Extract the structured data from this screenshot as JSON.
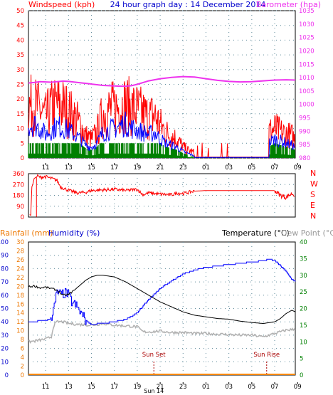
{
  "header": {
    "left_title": "Windspeed (kph)",
    "center_title": "24 hour graph day : 14 December 2014",
    "right_title": "Barometer (hpa)"
  },
  "colors": {
    "wind": "#ff0000",
    "wind_avg": "#0000ff",
    "wind_green": "#008000",
    "barometer": "#ee33ee",
    "rain": "#ff8800",
    "humidity": "#0000ff",
    "temperature": "#000000",
    "dewpoint": "#b0b0b0",
    "sun_marker": "#aa0000",
    "axis_red": "#ff0000",
    "axis_blue": "#0000cc",
    "axis_green": "#008000",
    "axis_orange": "#ee7700",
    "axis_grey": "#999999"
  },
  "time_ticks": [
    "11",
    "13",
    "15",
    "17",
    "19",
    "21",
    "23",
    "01",
    "03",
    "05",
    "07",
    "09"
  ],
  "chart_data": [
    {
      "id": "wind_baro",
      "type": "line",
      "ylabel": "Windspeed (kph)",
      "ylabel_right": "Barometer (hpa)",
      "ylim": [
        0,
        50
      ],
      "yticks": [
        "0",
        "5",
        "10",
        "15",
        "20",
        "25",
        "30",
        "35",
        "40",
        "45",
        "50"
      ],
      "ylim_right": [
        980,
        1035
      ],
      "yticks_right": [
        "980",
        "985",
        "990",
        "995",
        "1000",
        "1005",
        "1010",
        "1015",
        "1020",
        "1025",
        "1030",
        "1035"
      ],
      "grid": true,
      "series": [
        {
          "name": "Barometer",
          "axis": "right",
          "x": [
            9.5,
            10,
            10.5,
            11,
            11.5,
            12,
            12.5,
            13,
            14,
            15,
            16,
            17,
            17.5,
            18,
            18.5,
            19,
            20,
            21,
            22,
            23,
            24,
            25,
            26,
            27,
            28,
            29,
            30,
            31,
            32,
            32.8
          ],
          "y": [
            1008,
            1008.2,
            1008.5,
            1008.4,
            1008.3,
            1008.5,
            1008.7,
            1008.6,
            1008.1,
            1007.6,
            1007.1,
            1006.9,
            1006.8,
            1006.8,
            1007,
            1007.5,
            1008.8,
            1009.6,
            1010.1,
            1010.4,
            1010.2,
            1009.6,
            1009,
            1008.6,
            1008.4,
            1008.5,
            1008.8,
            1009.1,
            1009.2,
            1009.1
          ]
        },
        {
          "name": "Wind gust",
          "envelope_hours": [
            9.5,
            10,
            10.5,
            11,
            11.5,
            12,
            12.5,
            13,
            13.5,
            14,
            14.5,
            15,
            15.5,
            16,
            16.5,
            17,
            17.5,
            18,
            18.5,
            19,
            19.5,
            20,
            20.5,
            21,
            21.5,
            22,
            22.5,
            23,
            23.5,
            24,
            30.5,
            31,
            31.5,
            32,
            32.5,
            32.8
          ],
          "envelope_max": [
            28,
            29,
            26,
            22,
            27,
            29,
            28,
            25,
            22,
            18,
            12,
            10,
            14,
            24,
            26,
            27,
            28,
            29,
            27,
            26,
            24,
            22,
            23,
            18,
            14,
            12,
            10,
            6,
            4,
            3,
            14,
            16,
            14,
            13,
            12,
            10
          ]
        },
        {
          "name": "Wind average",
          "envelope_hours": [
            9.5,
            10,
            10.5,
            11,
            11.5,
            12,
            12.5,
            13,
            13.5,
            14,
            14.5,
            15,
            15.5,
            16,
            16.5,
            17,
            17.5,
            18,
            18.5,
            19,
            19.5,
            20,
            20.5,
            21,
            21.5,
            22,
            22.5,
            23,
            23.5,
            24,
            30.5,
            31,
            31.5,
            32,
            32.5,
            32.8
          ],
          "envelope_max": [
            15,
            16,
            14,
            11,
            13,
            15,
            14,
            13,
            11,
            9,
            6,
            5,
            7,
            12,
            13,
            14,
            15,
            16,
            14,
            13,
            12,
            11,
            12,
            9,
            7,
            6,
            5,
            3,
            2,
            1,
            7,
            9,
            8,
            7,
            6,
            5
          ]
        }
      ]
    },
    {
      "id": "wind_direction",
      "type": "line",
      "ylim": [
        0,
        360
      ],
      "yticks": [
        "0",
        "90",
        "180",
        "270",
        "360"
      ],
      "compass_labels": [
        "N",
        "W",
        "S",
        "E",
        "N"
      ],
      "grid": true,
      "series": [
        {
          "name": "Wind direction",
          "x": [
            9.6,
            9.7,
            9.8,
            9.9,
            10.0,
            10.3,
            10.5,
            11,
            11.5,
            12,
            12.3,
            12.8,
            13.2,
            13.8,
            14.5,
            15,
            16,
            17,
            18,
            19,
            19.5,
            20,
            21,
            22,
            22.5,
            23,
            23.5,
            24,
            25,
            26,
            27,
            28,
            29,
            30,
            31,
            31.5,
            32,
            32.5,
            32.8
          ],
          "y": [
            20,
            15,
            250,
            280,
            320,
            340,
            330,
            335,
            320,
            305,
            250,
            230,
            215,
            200,
            205,
            220,
            225,
            230,
            220,
            230,
            185,
            200,
            190,
            185,
            200,
            195,
            205,
            215,
            220,
            220,
            220,
            220,
            220,
            220,
            220,
            180,
            165,
            195,
            180
          ]
        }
      ]
    },
    {
      "id": "temp_hum_rain",
      "type": "line",
      "ylabel_rain": "Rainfall (mm)",
      "ylabel_humidity": "Humidity (%)",
      "ylabel_temp": "Temperature (°C)",
      "ylabel_dew": "Dew Point (°C)",
      "ylim_humidity": [
        0,
        100
      ],
      "yticks_humidity": [
        "0",
        "10",
        "20",
        "30",
        "40",
        "50",
        "60",
        "70",
        "80",
        "90",
        "100"
      ],
      "ylim_rain": [
        0,
        30
      ],
      "yticks_rain": [
        "0",
        "2",
        "4",
        "6",
        "8",
        "10",
        "12",
        "14",
        "16",
        "18",
        "20",
        "22",
        "24",
        "26",
        "28",
        "30"
      ],
      "ylim_temp": [
        0,
        40
      ],
      "yticks_temp": [
        "0",
        "5",
        "10",
        "15",
        "20",
        "25",
        "30",
        "35",
        "40"
      ],
      "grid": true,
      "annotations": [
        {
          "label": "Sun Set",
          "hour": 20.45
        },
        {
          "label": "Sun Rise",
          "hour": 30.3
        }
      ],
      "bottom_label": "Sun 14",
      "series": [
        {
          "name": "Temperature",
          "x": [
            9.5,
            10,
            10.5,
            11,
            11.5,
            12,
            12.5,
            13,
            13.5,
            14,
            14.5,
            15,
            15.5,
            16,
            17,
            18,
            19,
            20,
            21,
            22,
            23,
            24,
            25,
            26,
            27,
            28,
            29,
            30,
            31,
            31.5,
            32,
            32.5,
            32.8
          ],
          "y": [
            26.5,
            26.8,
            26.2,
            26.4,
            26,
            25.5,
            24,
            24.2,
            25.5,
            27,
            28.5,
            29.5,
            30,
            30,
            29.5,
            28,
            26,
            24,
            22,
            20.5,
            19,
            18,
            17.5,
            17,
            16.8,
            16.2,
            15.8,
            15.5,
            16,
            17,
            18.5,
            19.5,
            19
          ]
        },
        {
          "name": "Humidity",
          "x": [
            9.5,
            10,
            10.5,
            11,
            11.5,
            11.7,
            12,
            12.3,
            12.8,
            13.2,
            13.8,
            14.5,
            15,
            16,
            17,
            18,
            18.5,
            19,
            19.5,
            20,
            21,
            22,
            23,
            24,
            25,
            26,
            27,
            28,
            29,
            30,
            30.5,
            31,
            31.5,
            32,
            32.5,
            32.8
          ],
          "y": [
            40,
            40,
            41,
            41,
            43,
            50,
            63,
            60,
            62,
            56,
            50,
            41,
            38,
            39,
            40,
            42,
            44,
            47,
            52,
            57,
            65,
            71,
            76,
            79,
            81,
            82,
            83,
            84,
            85,
            86,
            87,
            86,
            82,
            78,
            72,
            70
          ]
        },
        {
          "name": "Dew point",
          "x": [
            9.5,
            10,
            10.5,
            11,
            11.5,
            11.7,
            12,
            12.5,
            13,
            14,
            15,
            16,
            17,
            18,
            19,
            19.5,
            20,
            21,
            22,
            23,
            24,
            25,
            26,
            27,
            28,
            29,
            30,
            31,
            32,
            32.8
          ],
          "y": [
            10,
            10.2,
            10.5,
            10.8,
            11.5,
            15,
            16,
            16,
            15.5,
            15.2,
            15,
            15.5,
            15,
            14.8,
            14.5,
            13,
            13,
            13.2,
            12.8,
            12.8,
            12.5,
            12.5,
            12.3,
            12.2,
            12,
            12,
            11.5,
            12.5,
            13.5,
            13.8
          ]
        },
        {
          "name": "Rainfall",
          "x": [
            9.5,
            32.8
          ],
          "y": [
            0,
            0
          ]
        }
      ]
    }
  ]
}
